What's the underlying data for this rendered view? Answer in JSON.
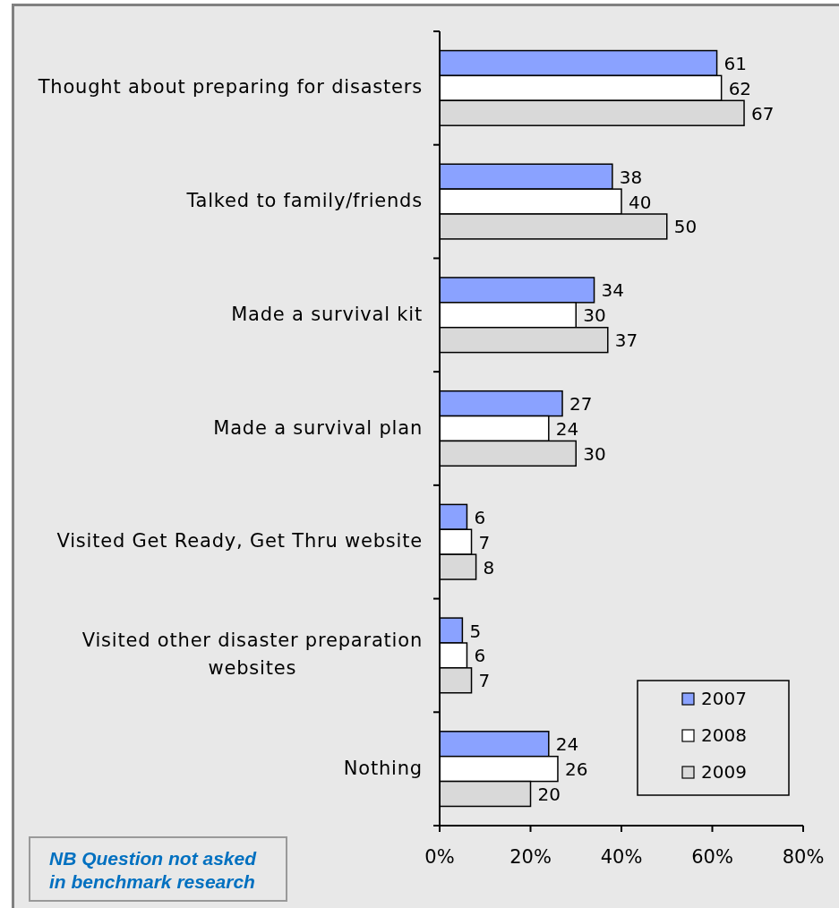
{
  "chart_data": {
    "type": "bar",
    "orientation": "horizontal",
    "categories": [
      "Thought about preparing for disasters",
      "Talked to family/friends",
      "Made a survival kit",
      "Made a survival plan",
      "Visited Get Ready, Get Thru website",
      "Visited other disaster preparation websites",
      "Nothing"
    ],
    "series": [
      {
        "name": "2007",
        "color": "#8aa2ff",
        "values": [
          61,
          38,
          34,
          27,
          6,
          5,
          24
        ]
      },
      {
        "name": "2008",
        "color": "#ffffff",
        "values": [
          62,
          40,
          30,
          24,
          7,
          6,
          26
        ]
      },
      {
        "name": "2009",
        "color": "#d9d9d9",
        "values": [
          67,
          50,
          37,
          30,
          8,
          7,
          20
        ]
      }
    ],
    "xlim": [
      0,
      80
    ],
    "xticks": [
      {
        "value": 0,
        "label": "0%"
      },
      {
        "value": 20,
        "label": "20%"
      },
      {
        "value": 40,
        "label": "40%"
      },
      {
        "value": 60,
        "label": "60%"
      },
      {
        "value": 80,
        "label": "80%"
      }
    ],
    "data_labels": true,
    "legend": "bottom right",
    "annotations": [
      "NB Question not asked in benchmark research"
    ]
  }
}
